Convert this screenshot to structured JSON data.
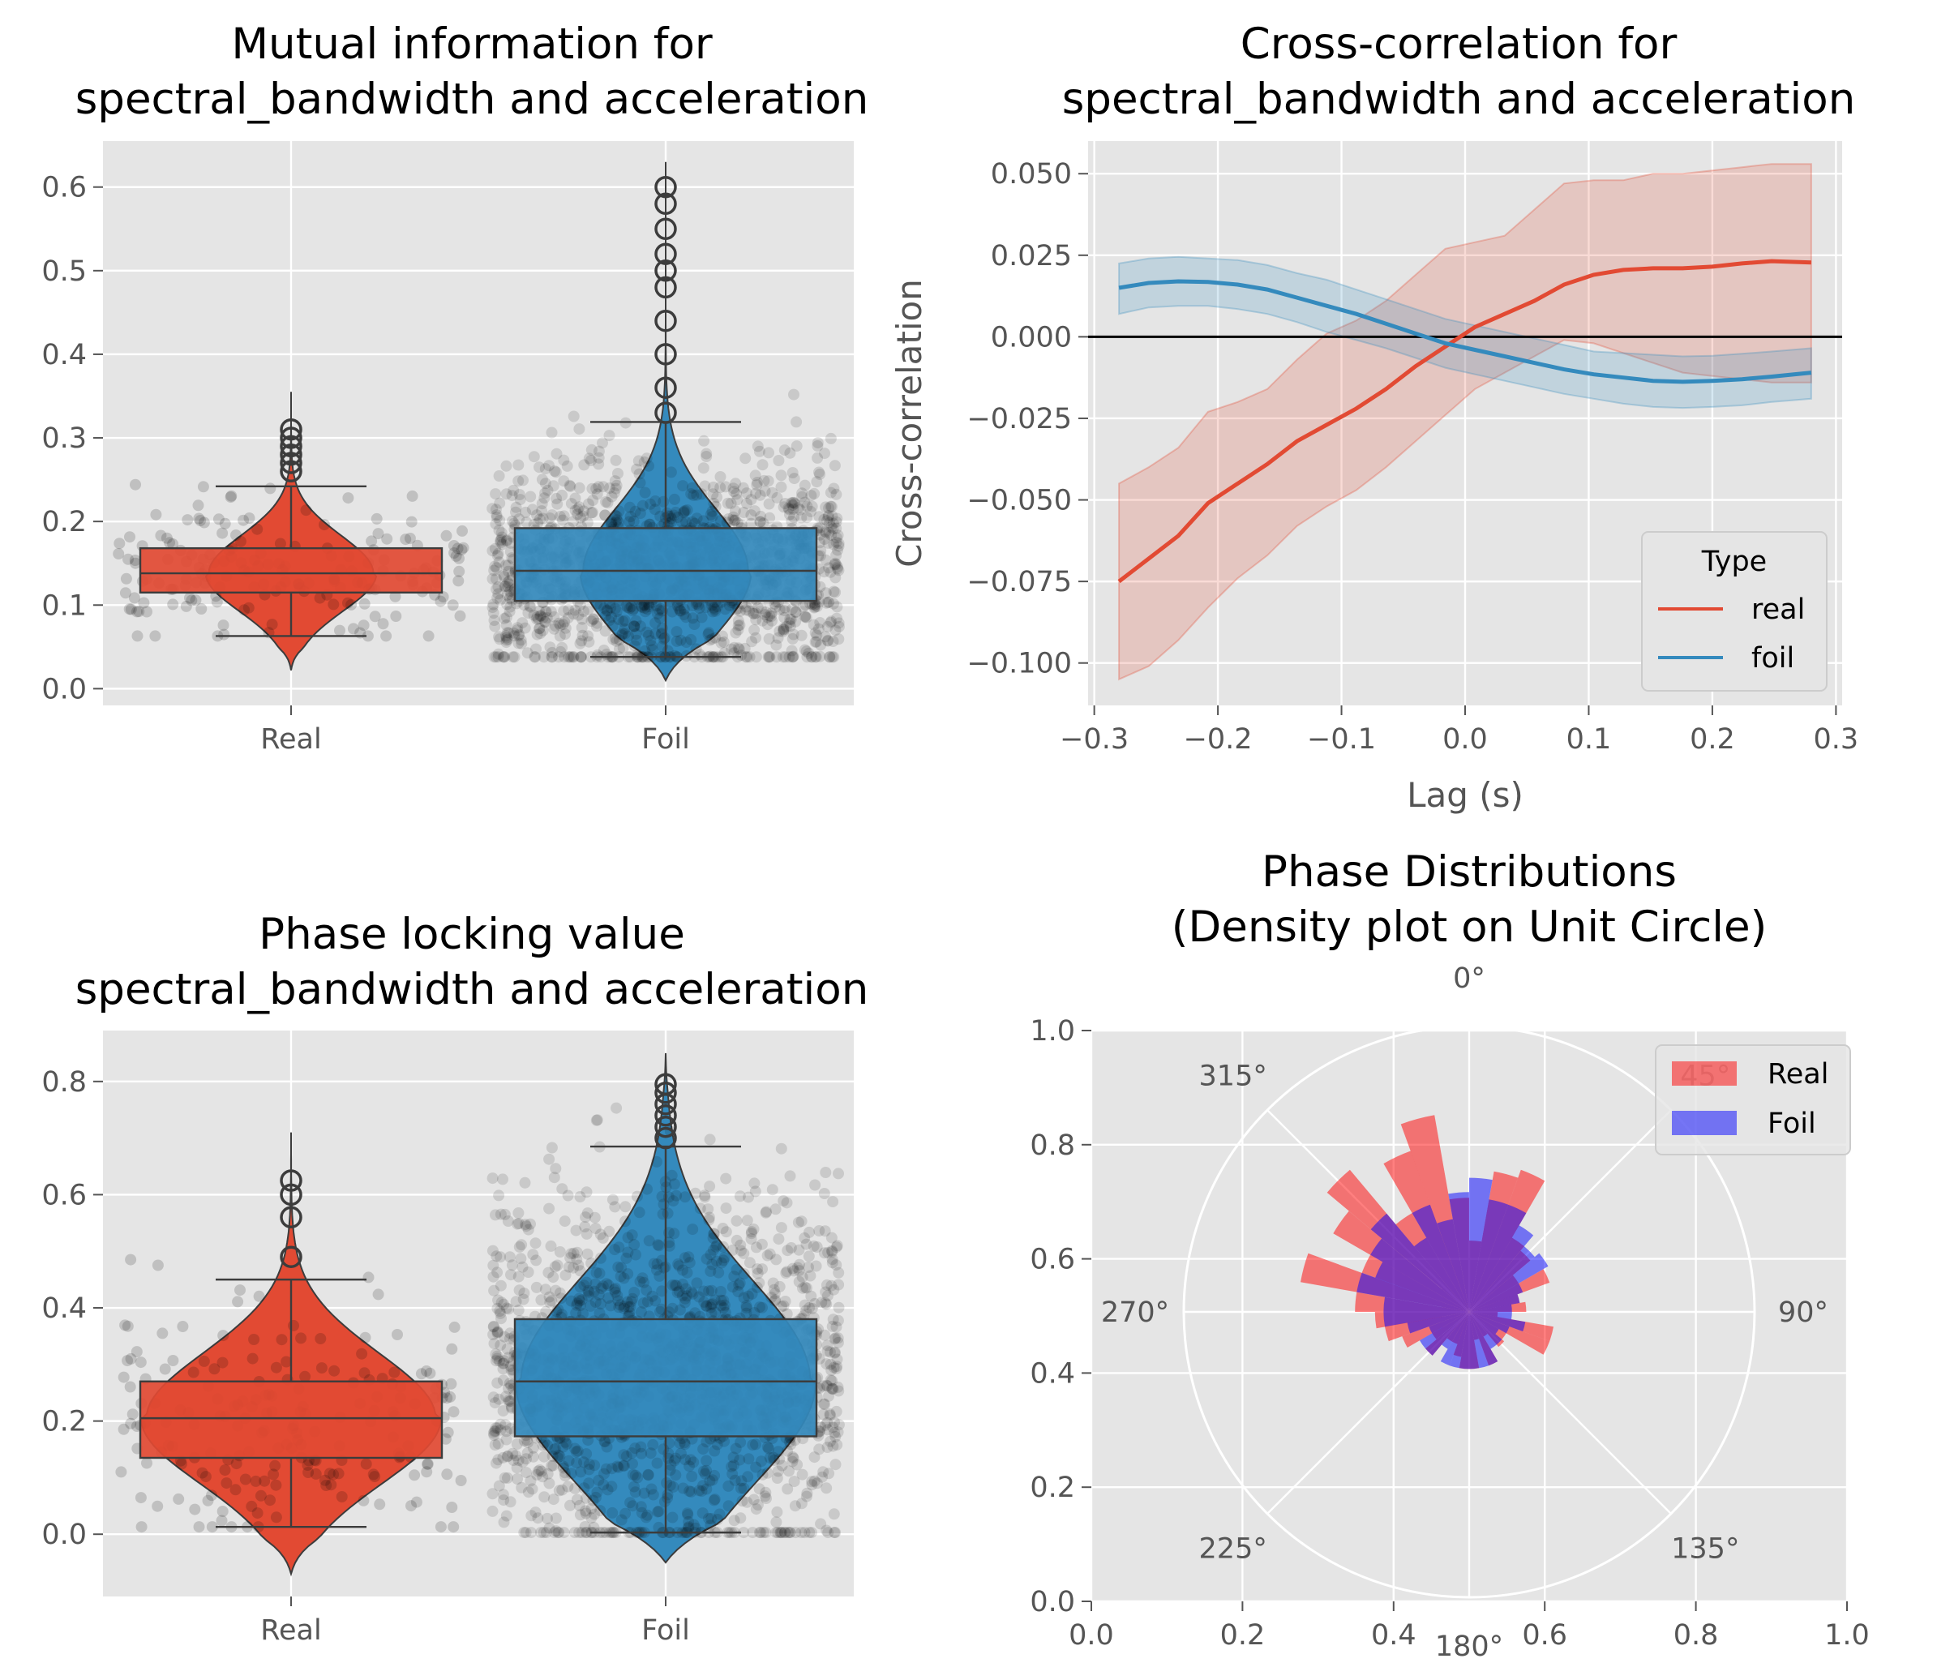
{
  "colors": {
    "panel_bg": "#E5E5E5",
    "grid": "#FFFFFF",
    "real": "#E24A33",
    "foil": "#348ABD",
    "polar_real": "#FF0000",
    "polar_foil": "#0000FF",
    "zero_line": "#000000"
  },
  "chart_data": [
    {
      "type": "box",
      "title": "Mutual information for\nspectral_bandwidth and acceleration",
      "title_lines": [
        "Mutual information for",
        "spectral_bandwidth and acceleration"
      ],
      "xlabel": "",
      "ylabel": "",
      "categories": [
        "Real",
        "Foil"
      ],
      "ylim": [
        -0.02,
        0.655
      ],
      "yticks": [
        0.0,
        0.1,
        0.2,
        0.3,
        0.4,
        0.5,
        0.6
      ],
      "ytick_labels": [
        "0.0",
        "0.1",
        "0.2",
        "0.3",
        "0.4",
        "0.5",
        "0.6"
      ],
      "grid": true,
      "overlays": [
        "violin",
        "strip"
      ],
      "series": [
        {
          "name": "Real",
          "color": "#E24A33",
          "box": {
            "whisker_low": 0.063,
            "q1": 0.115,
            "median": 0.138,
            "q3": 0.168,
            "whisker_high": 0.242
          },
          "violin_range": [
            0.022,
            0.355
          ],
          "outliers": [
            0.26,
            0.27,
            0.28,
            0.29,
            0.3,
            0.31
          ]
        },
        {
          "name": "Foil",
          "color": "#348ABD",
          "box": {
            "whisker_low": 0.038,
            "q1": 0.105,
            "median": 0.141,
            "q3": 0.192,
            "whisker_high": 0.319
          },
          "violin_range": [
            0.01,
            0.63
          ],
          "outliers": [
            0.33,
            0.36,
            0.4,
            0.44,
            0.48,
            0.5,
            0.52,
            0.55,
            0.58,
            0.6
          ]
        }
      ]
    },
    {
      "type": "line",
      "title": "Cross-correlation for\nspectral_bandwidth and acceleration",
      "title_lines": [
        "Cross-correlation for",
        "spectral_bandwidth and acceleration"
      ],
      "xlabel": "Lag (s)",
      "ylabel": "Cross-correlation",
      "xlim": [
        -0.305,
        0.305
      ],
      "ylim": [
        -0.113,
        0.06
      ],
      "xticks": [
        -0.3,
        -0.2,
        -0.1,
        0.0,
        0.1,
        0.2,
        0.3
      ],
      "xtick_labels": [
        "−0.3",
        "−0.2",
        "−0.1",
        "0.0",
        "0.1",
        "0.2",
        "0.3"
      ],
      "yticks": [
        -0.1,
        -0.075,
        -0.05,
        -0.025,
        0.0,
        0.025,
        0.05
      ],
      "ytick_labels": [
        "−0.100",
        "−0.075",
        "−0.050",
        "−0.025",
        "0.000",
        "0.025",
        "0.050"
      ],
      "grid": true,
      "legend": {
        "title": "Type",
        "placement": "lower right"
      },
      "x": [
        -0.28,
        -0.256,
        -0.232,
        -0.208,
        -0.184,
        -0.16,
        -0.136,
        -0.112,
        -0.088,
        -0.064,
        -0.04,
        -0.016,
        0.008,
        0.032,
        0.056,
        0.08,
        0.104,
        0.128,
        0.152,
        0.176,
        0.2,
        0.224,
        0.248,
        0.28
      ],
      "series": [
        {
          "name": "real",
          "color": "#E24A33",
          "values": [
            -0.075,
            -0.068,
            -0.061,
            -0.051,
            -0.045,
            -0.039,
            -0.032,
            -0.027,
            -0.022,
            -0.016,
            -0.009,
            -0.003,
            0.003,
            0.007,
            0.011,
            0.016,
            0.019,
            0.0205,
            0.021,
            0.021,
            0.0215,
            0.0225,
            0.0232,
            0.0228
          ],
          "lower": [
            -0.105,
            -0.101,
            -0.093,
            -0.083,
            -0.074,
            -0.067,
            -0.058,
            -0.052,
            -0.047,
            -0.04,
            -0.032,
            -0.024,
            -0.016,
            -0.011,
            -0.006,
            -0.001,
            -0.002,
            -0.005,
            -0.008,
            -0.011,
            -0.012,
            -0.013,
            -0.014,
            -0.014
          ],
          "upper": [
            -0.045,
            -0.04,
            -0.034,
            -0.023,
            -0.02,
            -0.016,
            -0.007,
            0.001,
            0.005,
            0.011,
            0.019,
            0.027,
            0.029,
            0.031,
            0.039,
            0.047,
            0.048,
            0.048,
            0.05,
            0.05,
            0.051,
            0.052,
            0.053,
            0.053
          ]
        },
        {
          "name": "foil",
          "color": "#348ABD",
          "values": [
            0.015,
            0.0165,
            0.017,
            0.0168,
            0.016,
            0.0145,
            0.012,
            0.0095,
            0.007,
            0.004,
            0.001,
            -0.002,
            -0.004,
            -0.006,
            -0.008,
            -0.01,
            -0.0115,
            -0.0125,
            -0.0135,
            -0.0138,
            -0.0135,
            -0.013,
            -0.0122,
            -0.011
          ],
          "lower": [
            0.007,
            0.009,
            0.0095,
            0.0095,
            0.0085,
            0.007,
            0.0045,
            0.0015,
            -0.001,
            -0.0035,
            -0.0065,
            -0.0095,
            -0.0115,
            -0.0135,
            -0.0155,
            -0.0175,
            -0.019,
            -0.0205,
            -0.0215,
            -0.0218,
            -0.0215,
            -0.021,
            -0.02,
            -0.019
          ],
          "upper": [
            0.0225,
            0.024,
            0.0245,
            0.024,
            0.0235,
            0.022,
            0.0195,
            0.0175,
            0.0145,
            0.0115,
            0.0085,
            0.0055,
            0.0035,
            0.0015,
            -0.0005,
            -0.0025,
            -0.0045,
            -0.005,
            -0.0055,
            -0.006,
            -0.0058,
            -0.0052,
            -0.0045,
            -0.0035
          ]
        }
      ],
      "hline": 0.0
    },
    {
      "type": "box",
      "title": "Phase locking value\nspectral_bandwidth and acceleration",
      "title_lines": [
        "Phase locking value",
        "spectral_bandwidth and acceleration"
      ],
      "xlabel": "",
      "ylabel": "",
      "categories": [
        "Real",
        "Foil"
      ],
      "ylim": [
        -0.11,
        0.89
      ],
      "yticks": [
        0.0,
        0.2,
        0.4,
        0.6,
        0.8
      ],
      "ytick_labels": [
        "0.0",
        "0.2",
        "0.4",
        "0.6",
        "0.8"
      ],
      "grid": true,
      "overlays": [
        "violin",
        "strip"
      ],
      "series": [
        {
          "name": "Real",
          "color": "#E24A33",
          "box": {
            "whisker_low": 0.013,
            "q1": 0.135,
            "median": 0.205,
            "q3": 0.27,
            "whisker_high": 0.45
          },
          "violin_range": [
            -0.07,
            0.71
          ],
          "outliers": [
            0.49,
            0.56,
            0.6,
            0.625
          ]
        },
        {
          "name": "Foil",
          "color": "#348ABD",
          "box": {
            "whisker_low": 0.003,
            "q1": 0.173,
            "median": 0.27,
            "q3": 0.38,
            "whisker_high": 0.685
          },
          "violin_range": [
            -0.05,
            0.85
          ],
          "outliers": [
            0.7,
            0.72,
            0.74,
            0.76,
            0.78,
            0.795
          ]
        }
      ]
    },
    {
      "type": "polar_histogram",
      "title": "Phase Distributions\n(Density plot on Unit Circle)",
      "title_lines": [
        "Phase Distributions",
        "(Density plot on Unit Circle)"
      ],
      "xlim": [
        0.0,
        1.0
      ],
      "ylim": [
        0.0,
        1.0
      ],
      "xticks": [
        0.0,
        0.2,
        0.4,
        0.6,
        0.8,
        1.0
      ],
      "xtick_labels": [
        "0.0",
        "0.2",
        "0.4",
        "0.6",
        "0.8",
        "1.0"
      ],
      "yticks": [
        0.0,
        0.2,
        0.4,
        0.6,
        0.8,
        1.0
      ],
      "ytick_labels": [
        "0.0",
        "0.2",
        "0.4",
        "0.6",
        "0.8",
        "1.0"
      ],
      "angle_labels": [
        "0°",
        "45°",
        "90°",
        "135°",
        "180°",
        "225°",
        "270°",
        "315°"
      ],
      "theta_zero": "top",
      "theta_direction": "clockwise",
      "legend": {
        "placement": "upper right"
      },
      "bin_width_deg": 10,
      "bin_centers_deg": [
        5,
        15,
        25,
        35,
        45,
        55,
        65,
        75,
        85,
        95,
        105,
        115,
        125,
        135,
        145,
        155,
        165,
        175,
        185,
        195,
        205,
        215,
        225,
        235,
        245,
        255,
        265,
        275,
        285,
        295,
        305,
        315,
        325,
        335,
        345,
        355
      ],
      "series": [
        {
          "name": "Real",
          "color": "#FF0000",
          "alpha": 0.5,
          "values": [
            0.25,
            0.5,
            0.53,
            0.3,
            0.28,
            0.2,
            0.3,
            0.18,
            0.2,
            0.1,
            0.3,
            0.3,
            0.15,
            0.16,
            0.1,
            0.2,
            0.1,
            0.2,
            0.2,
            0.16,
            0.12,
            0.12,
            0.2,
            0.15,
            0.25,
            0.3,
            0.33,
            0.4,
            0.6,
            0.4,
            0.55,
            0.65,
            0.4,
            0.6,
            0.7,
            0.4
          ]
        },
        {
          "name": "Foil",
          "color": "#0000FF",
          "alpha": 0.5,
          "values": [
            0.47,
            0.4,
            0.4,
            0.35,
            0.3,
            0.32,
            0.2,
            0.18,
            0.15,
            0.15,
            0.2,
            0.15,
            0.12,
            0.15,
            0.15,
            0.2,
            0.2,
            0.2,
            0.2,
            0.2,
            0.2,
            0.15,
            0.2,
            0.2,
            0.15,
            0.22,
            0.3,
            0.3,
            0.4,
            0.35,
            0.4,
            0.45,
            0.3,
            0.4,
            0.33,
            0.42
          ]
        }
      ]
    }
  ]
}
